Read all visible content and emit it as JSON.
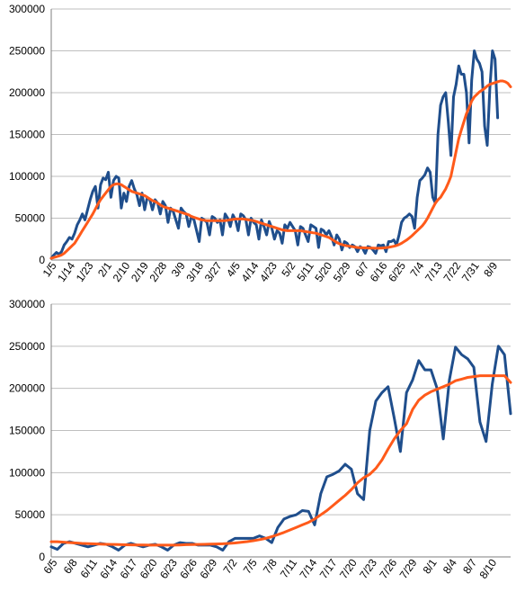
{
  "colors": {
    "daily": "#1f4e8c",
    "average": "#ff5a1a",
    "grid": "#bfbfbf",
    "axis": "#7f7f7f"
  },
  "chart_data": [
    {
      "type": "line",
      "title": "",
      "xlabel": "",
      "ylabel": "",
      "ylim": [
        0,
        300000
      ],
      "yticks": [
        "0",
        "50000",
        "100000",
        "150000",
        "200000",
        "250000",
        "300000"
      ],
      "xtick_labels": [
        "1/5",
        "1/14",
        "1/23",
        "2/1",
        "2/10",
        "2/19",
        "2/28",
        "3/9",
        "3/18",
        "3/27",
        "4/5",
        "4/14",
        "4/23",
        "5/2",
        "5/11",
        "5/20",
        "5/29",
        "6/7",
        "6/16",
        "6/25",
        "7/4",
        "7/13",
        "7/22",
        "7/31",
        "8/9"
      ],
      "grid": "horizontal",
      "legend": "none",
      "series": [
        {
          "color": "daily",
          "values": [
            2000,
            6000,
            9000,
            7000,
            10000,
            18000,
            22000,
            27000,
            25000,
            32000,
            42000,
            48000,
            55000,
            48000,
            60000,
            72000,
            82000,
            88000,
            62000,
            90000,
            98000,
            96000,
            105000,
            75000,
            95000,
            100000,
            98000,
            62000,
            80000,
            70000,
            88000,
            95000,
            85000,
            78000,
            65000,
            80000,
            60000,
            75000,
            72000,
            60000,
            72000,
            68000,
            55000,
            70000,
            65000,
            45000,
            62000,
            58000,
            48000,
            38000,
            62000,
            58000,
            55000,
            40000,
            52000,
            48000,
            35000,
            22000,
            50000,
            48000,
            45000,
            30000,
            52000,
            50000,
            45000,
            48000,
            30000,
            55000,
            50000,
            40000,
            54000,
            48000,
            35000,
            55000,
            53000,
            48000,
            30000,
            50000,
            45000,
            42000,
            25000,
            48000,
            40000,
            30000,
            46000,
            38000,
            25000,
            35000,
            32000,
            20000,
            42000,
            38000,
            45000,
            40000,
            35000,
            18000,
            40000,
            38000,
            30000,
            22000,
            42000,
            40000,
            38000,
            15000,
            37000,
            35000,
            30000,
            35000,
            28000,
            18000,
            30000,
            25000,
            12000,
            22000,
            20000,
            15000,
            18000,
            16000,
            10000,
            16000,
            14000,
            8000,
            16000,
            15000,
            12000,
            8000,
            18000,
            17000,
            18000,
            10000,
            22000,
            22000,
            24000,
            18000,
            30000,
            45000,
            50000,
            52000,
            55000,
            52000,
            38000,
            75000,
            95000,
            98000,
            102000,
            110000,
            105000,
            75000,
            68000,
            150000,
            185000,
            195000,
            200000,
            165000,
            125000,
            195000,
            210000,
            232000,
            222000,
            222000,
            200000,
            140000,
            215000,
            250000,
            240000,
            235000,
            225000,
            160000,
            137000,
            205000,
            250000,
            240000,
            170000
          ]
        },
        {
          "color": "average",
          "values": [
            2000,
            3000,
            4000,
            5000,
            6000,
            8000,
            11000,
            14000,
            17000,
            20000,
            25000,
            30000,
            35000,
            40000,
            45000,
            50000,
            55000,
            61000,
            67000,
            72000,
            76000,
            80000,
            84000,
            88000,
            90000,
            91000,
            91000,
            90000,
            88000,
            86000,
            84000,
            82000,
            81000,
            80000,
            79000,
            78000,
            77000,
            75000,
            73000,
            71000,
            70000,
            68000,
            66000,
            64000,
            63000,
            62000,
            61000,
            60000,
            59000,
            58000,
            57000,
            56000,
            55000,
            54000,
            52000,
            51000,
            50000,
            49000,
            48000,
            47500,
            47000,
            47000,
            47000,
            47000,
            47000,
            47000,
            47000,
            47000,
            47500,
            48000,
            48500,
            49000,
            49000,
            49000,
            49000,
            48500,
            48000,
            47500,
            47000,
            46000,
            45000,
            44000,
            43000,
            42000,
            41000,
            40000,
            39000,
            38000,
            37000,
            36000,
            35500,
            35000,
            35000,
            35000,
            35000,
            35000,
            35000,
            34500,
            34000,
            33500,
            33000,
            32500,
            32000,
            31000,
            30000,
            29000,
            28000,
            27000,
            25000,
            23000,
            21000,
            19500,
            18500,
            17500,
            17000,
            16500,
            16000,
            15500,
            15000,
            14800,
            14600,
            14500,
            14400,
            14300,
            14200,
            14100,
            14100,
            14200,
            14400,
            14700,
            15200,
            15800,
            16500,
            17300,
            18500,
            20000,
            22000,
            24000,
            26500,
            29000,
            32000,
            35000,
            38000,
            41000,
            45000,
            50000,
            56000,
            62000,
            68000,
            72000,
            75000,
            80000,
            85000,
            92000,
            100000,
            115000,
            130000,
            145000,
            155000,
            165000,
            175000,
            182000,
            190000,
            195000,
            198000,
            201000,
            203000,
            205000,
            208000,
            210000,
            211000,
            212000,
            213000,
            214000,
            214000,
            213000,
            211000,
            207000
          ]
        }
      ]
    },
    {
      "type": "line",
      "title": "",
      "xlabel": "",
      "ylabel": "",
      "ylim": [
        0,
        300000
      ],
      "yticks": [
        "0",
        "50000",
        "100000",
        "150000",
        "200000",
        "250000",
        "300000"
      ],
      "xtick_labels": [
        "6/5",
        "6/8",
        "6/11",
        "6/14",
        "6/17",
        "6/20",
        "6/23",
        "6/26",
        "6/29",
        "7/2",
        "7/5",
        "7/8",
        "7/11",
        "7/14",
        "7/17",
        "7/20",
        "7/23",
        "7/26",
        "7/29",
        "8/1",
        "8/4",
        "8/7",
        "8/10"
      ],
      "grid": "horizontal",
      "legend": "none",
      "series": [
        {
          "color": "daily",
          "values": [
            12000,
            9000,
            16000,
            18000,
            16000,
            14000,
            12000,
            14000,
            16000,
            15000,
            12000,
            8000,
            14000,
            16000,
            14000,
            12000,
            14000,
            15000,
            12000,
            8000,
            14000,
            17000,
            16000,
            16000,
            14000,
            14000,
            14000,
            12000,
            8000,
            18000,
            22000,
            22000,
            22000,
            22000,
            25000,
            22000,
            17000,
            35000,
            45000,
            48000,
            50000,
            55000,
            54000,
            38000,
            75000,
            95000,
            98000,
            102000,
            110000,
            104000,
            75000,
            68000,
            150000,
            185000,
            195000,
            202000,
            165000,
            125000,
            195000,
            210000,
            233000,
            222000,
            222000,
            200000,
            140000,
            210000,
            249000,
            240000,
            235000,
            225000,
            160000,
            137000,
            205000,
            250000,
            240000,
            170000
          ]
        },
        {
          "color": "average",
          "values": [
            18000,
            18000,
            17500,
            17000,
            16500,
            16000,
            15800,
            15500,
            15200,
            15000,
            14800,
            14600,
            14400,
            14300,
            14200,
            14100,
            14000,
            14000,
            14000,
            14000,
            14000,
            14200,
            14500,
            14700,
            14800,
            15000,
            15200,
            15400,
            15600,
            16000,
            16600,
            17300,
            18200,
            19200,
            20500,
            22000,
            24000,
            26500,
            29000,
            32000,
            35000,
            38000,
            41000,
            45000,
            50000,
            55000,
            61000,
            67000,
            73000,
            80000,
            88000,
            94000,
            98000,
            105000,
            115000,
            128000,
            140000,
            150000,
            158000,
            175000,
            186000,
            192000,
            196000,
            199000,
            202000,
            205000,
            209000,
            211000,
            213000,
            214000,
            215000,
            215000,
            215000,
            215000,
            215000,
            207000
          ]
        }
      ]
    }
  ]
}
